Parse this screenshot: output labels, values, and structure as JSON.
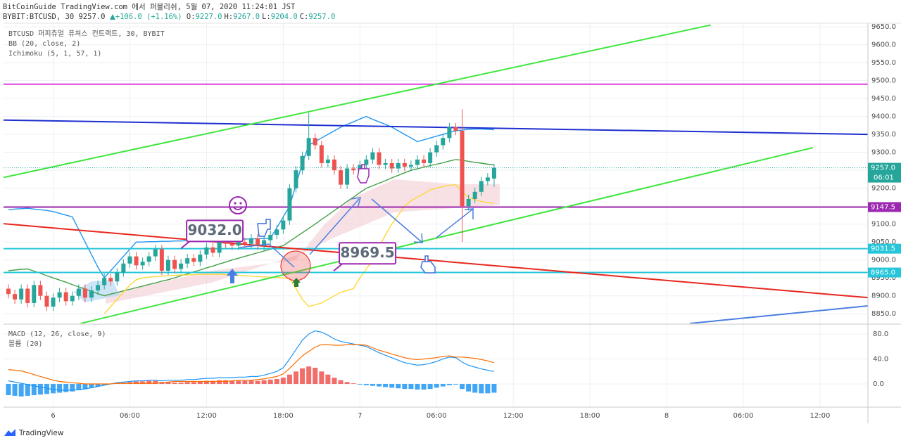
{
  "header": {
    "publisher": "BitCoinGuide TradingView.com 에서 퍼블리쉬, 5월 07, 2020 11:24:01 JST",
    "symbol": "BYBIT:BTCUSD, 30",
    "last": "9257.0",
    "change": "+106.0 (+1.16%)",
    "ohlc": [
      {
        "label": "O:",
        "value": "9227.0"
      },
      {
        "label": "H:",
        "value": "9267.0"
      },
      {
        "label": "L:",
        "value": "9204.0"
      },
      {
        "label": "C:",
        "value": "9257.0"
      }
    ]
  },
  "footer": {
    "brand": "TradingView"
  },
  "chart_data": [
    {
      "type": "candlestick",
      "title": "BTCUSD 퍼피츄얼 퓨쳐스 컨트랙트, 30, BYBIT",
      "open": [
        8920,
        8905,
        8890,
        8920,
        8880,
        8930,
        8900,
        8870,
        8895,
        8910,
        8885,
        8900,
        8920,
        8895,
        8915,
        8930,
        8950,
        8940,
        8965,
        8990,
        9010,
        8985,
        8995,
        9010,
        9030,
        8970,
        9000,
        8975,
        8990,
        9005,
        8995,
        9015,
        9035,
        9020,
        9050,
        9045,
        9040,
        9050,
        9045,
        9060,
        9040,
        9055,
        9070,
        9085,
        9110,
        9200,
        9250,
        9290,
        9340,
        9320,
        9270,
        9280,
        9250,
        9210,
        9255,
        9250,
        9265,
        9280,
        9300,
        9265,
        9270,
        9255,
        9270,
        9260,
        9265,
        9280,
        9270,
        9300,
        9320,
        9340,
        9370,
        9360,
        9150,
        9170,
        9190,
        9220,
        9227
      ],
      "high": [
        8932,
        8917,
        8932,
        8932,
        8942,
        8942,
        8912,
        8907,
        8922,
        8922,
        8912,
        8932,
        8932,
        8927,
        8942,
        8962,
        8962,
        8977,
        9002,
        9022,
        9022,
        9007,
        9022,
        9042,
        9042,
        9012,
        9012,
        9002,
        9017,
        9017,
        9027,
        9047,
        9047,
        9062,
        9062,
        9057,
        9062,
        9062,
        9072,
        9072,
        9067,
        9082,
        9097,
        9122,
        9212,
        9262,
        9302,
        9410,
        9352,
        9332,
        9292,
        9292,
        9262,
        9267,
        9267,
        9277,
        9292,
        9312,
        9312,
        9282,
        9282,
        9282,
        9282,
        9277,
        9292,
        9292,
        9312,
        9332,
        9352,
        9382,
        9382,
        9420,
        9182,
        9202,
        9232,
        9242,
        9267
      ],
      "low": [
        8893,
        8878,
        8878,
        8868,
        8868,
        8888,
        8858,
        8858,
        8883,
        8873,
        8873,
        8888,
        8883,
        8883,
        8903,
        8918,
        8928,
        8928,
        8953,
        8978,
        8973,
        8973,
        8983,
        8998,
        8958,
        8958,
        8963,
        8963,
        8978,
        8983,
        8983,
        9003,
        9008,
        9008,
        9033,
        9028,
        9028,
        9033,
        9033,
        9028,
        9028,
        9043,
        9058,
        9073,
        9098,
        9188,
        9238,
        9278,
        9308,
        9258,
        9258,
        9238,
        9198,
        9198,
        9238,
        9238,
        9253,
        9268,
        9253,
        9253,
        9243,
        9243,
        9248,
        9248,
        9253,
        9258,
        9258,
        9288,
        9308,
        9328,
        9348,
        9050,
        9138,
        9158,
        9178,
        9208,
        9204
      ],
      "close": [
        8905,
        8890,
        8920,
        8880,
        8930,
        8900,
        8870,
        8895,
        8910,
        8885,
        8900,
        8920,
        8895,
        8915,
        8930,
        8950,
        8940,
        8965,
        8990,
        9010,
        8985,
        8995,
        9010,
        9030,
        8970,
        9000,
        8975,
        8990,
        9005,
        8995,
        9015,
        9035,
        9020,
        9050,
        9045,
        9040,
        9050,
        9045,
        9060,
        9040,
        9055,
        9070,
        9085,
        9110,
        9200,
        9250,
        9290,
        9340,
        9320,
        9270,
        9280,
        9250,
        9210,
        9255,
        9250,
        9265,
        9280,
        9300,
        9265,
        9270,
        9255,
        9270,
        9260,
        9265,
        9280,
        9270,
        9300,
        9320,
        9340,
        9370,
        9360,
        9150,
        9170,
        9190,
        9220,
        9230,
        9257
      ],
      "up_color": "#26a69a",
      "down_color": "#ef5350",
      "xlim": [
        -0.77,
        134.5
      ],
      "xticks": [
        {
          "value": 7,
          "label": "6"
        },
        {
          "value": 19,
          "label": "06:00"
        },
        {
          "value": 31,
          "label": "12:00"
        },
        {
          "value": 43,
          "label": "18:00"
        },
        {
          "value": 55,
          "label": "7"
        },
        {
          "value": 67,
          "label": "06:00"
        },
        {
          "value": 79,
          "label": "12:00"
        },
        {
          "value": 91,
          "label": "18:00"
        },
        {
          "value": 103,
          "label": "8"
        },
        {
          "value": 115,
          "label": "06:00"
        },
        {
          "value": 127,
          "label": "12:00"
        }
      ],
      "ylim": [
        8823,
        9660
      ],
      "yticks": [
        {
          "value": 8850,
          "label": "8850.0"
        },
        {
          "value": 8900,
          "label": "8900.0"
        },
        {
          "value": 8950,
          "label": "8950.0"
        },
        {
          "value": 9000,
          "label": "9000.0"
        },
        {
          "value": 9050,
          "label": "9050.0"
        },
        {
          "value": 9100,
          "label": "9100.0"
        },
        {
          "value": 9150,
          "label": "9150.0"
        },
        {
          "value": 9200,
          "label": "9200.0"
        },
        {
          "value": 9250,
          "label": "9250.0"
        },
        {
          "value": 9300,
          "label": "9300.0"
        },
        {
          "value": 9350,
          "label": "9350.0"
        },
        {
          "value": 9400,
          "label": "9400.0"
        },
        {
          "value": 9450,
          "label": "9450.0"
        },
        {
          "value": 9500,
          "label": "9500.0"
        },
        {
          "value": 9550,
          "label": "9550.0"
        },
        {
          "value": 9600,
          "label": "9600.0"
        },
        {
          "value": 9650,
          "label": "9650.0"
        }
      ],
      "grid": true,
      "indicators": [
        {
          "name": "BB (20, close, 2)",
          "lines": [
            {
              "color": "#43a047",
              "values": [
                8970,
                8972,
                8974,
                8975,
                8969,
                8963,
                8956,
                8950,
                8944,
                8938,
                8931,
                8925,
                8919,
                8913,
                8906,
                8900,
                8905,
                8909,
                8914,
                8918,
                8923,
                8927,
                8932,
                8936,
                8941,
                8945,
                8950,
                8956,
                8961,
                8967,
                8972,
                8978,
                8983,
                8989,
                8994,
                9000,
                9005,
                9010,
                9015,
                9020,
                9025,
                9030,
                9035,
                9040,
                9052,
                9064,
                9076,
                9088,
                9100,
                9113,
                9125,
                9138,
                9150,
                9163,
                9175,
                9188,
                9200,
                9207,
                9214,
                9221,
                9229,
                9236,
                9243,
                9250,
                9254,
                9259,
                9263,
                9267,
                9271,
                9276,
                9280,
                9278,
                9275,
                9272,
                9270,
                9267,
                9265
              ]
            },
            {
              "color": "#2196f3",
              "values": [
                9140,
                9142,
                9143,
                9144,
                9142,
                9140,
                9138,
                9135,
                9130,
                9125,
                9120,
                9085,
                9050,
                9015,
                8980,
                8950,
                8970,
                8990,
                9010,
                9030,
                9050,
                9050,
                9051,
                9051,
                9052,
                9052,
                9053,
                9053,
                9054,
                9054,
                9055,
                9055,
                9056,
                9056,
                9057,
                9057,
                9058,
                9058,
                9059,
                9059,
                9060,
                9060,
                9090,
                9120,
                9150,
                9210,
                9270,
                9320,
                9330,
                9340,
                9350,
                9360,
                9370,
                9378,
                9385,
                9393,
                9400,
                9392,
                9385,
                9378,
                9370,
                9360,
                9350,
                9340,
                9330,
                9335,
                9340,
                9345,
                9350,
                9355,
                9360,
                9362,
                9364,
                9365,
                9365,
                9364,
                9363
              ]
            }
          ]
        },
        {
          "name": "Ichimoku (5, 1, 57, 1)",
          "lines": [
            {
              "color": "#fdd835",
              "values": [
                null,
                null,
                null,
                null,
                null,
                null,
                null,
                null,
                null,
                null,
                null,
                null,
                null,
                null,
                null,
                8850,
                8870,
                8890,
                8910,
                8930,
                8945,
                8950,
                8952,
                8954,
                8955,
                8956,
                8957,
                8958,
                8958,
                8959,
                8960,
                8960,
                8960,
                8960,
                8959,
                8958,
                8957,
                8956,
                8955,
                8954,
                8953,
                8952,
                8951,
                8950,
                8948,
                8920,
                8890,
                8870,
                8875,
                8880,
                8890,
                8900,
                8910,
                8915,
                8920,
                8950,
                8975,
                9000,
                9035,
                9070,
                9100,
                9125,
                9150,
                9165,
                9175,
                9185,
                9195,
                9200,
                9205,
                9208,
                9210,
                9190,
                9175,
                9168,
                9163,
                9160,
                9158
              ]
            }
          ]
        }
      ],
      "levels": [
        {
          "value": 9490,
          "color": "#e040e0"
        },
        {
          "value": 9147.5,
          "label": "9147.5",
          "color": "#9c27b0"
        },
        {
          "value": 9031.5,
          "label": "9031.5",
          "color": "#26c6da"
        },
        {
          "value": 8965,
          "label": "8965.0",
          "color": "#26c6da"
        }
      ],
      "last_price": {
        "value": 9257,
        "label": "9257.0",
        "countdown": "06:01",
        "color": "#26a69a"
      },
      "trend_lines": [
        {
          "color": "#1e2fd0",
          "x": [
            -0.77,
            134.5
          ],
          "y": [
            9390,
            9350
          ]
        },
        {
          "color": "#3ee63e",
          "x": [
            -0.77,
            109.9
          ],
          "y": [
            9230,
            9655
          ]
        },
        {
          "color": "#3ee63e",
          "x": [
            11.3,
            125.9
          ],
          "y": [
            8823,
            9313
          ]
        },
        {
          "color": "#e8261e",
          "x": [
            -0.77,
            134.5
          ],
          "y": [
            9101,
            8895
          ]
        },
        {
          "color": "#4a7fe0",
          "x": [
            106.6,
            134.5
          ],
          "y": [
            8823,
            8872
          ]
        }
      ],
      "annotations": [
        {
          "x": 27,
          "value": 9032,
          "label": "9032.0"
        },
        {
          "x": 50.9,
          "value": 8969.5,
          "label": "8969.5"
        }
      ]
    },
    {
      "type": "macd",
      "title": "MACD (12, 26, close, 9)",
      "subtitle": "볼륨 (20)",
      "xlim": [
        -0.77,
        134.5
      ],
      "ylim": [
        -36,
        94.6
      ],
      "yticks": [
        {
          "value": 80,
          "label": "80.0"
        },
        {
          "value": 40,
          "label": "40.0"
        },
        {
          "value": 0,
          "label": "0.0"
        }
      ],
      "histogram": {
        "pos_color": "#ef5350",
        "neg_color": "#2196f3",
        "values": [
          -18,
          -19,
          -20,
          -19,
          -18,
          -17,
          -16,
          -15,
          -14,
          -13,
          -12,
          -10,
          -8,
          -6,
          -4,
          -2,
          0,
          1,
          2,
          3,
          4,
          4,
          5,
          5,
          3,
          3,
          2,
          2,
          3,
          3,
          4,
          5,
          5,
          6,
          6,
          5,
          5,
          5,
          6,
          5,
          6,
          7,
          8,
          10,
          15,
          20,
          25,
          28,
          26,
          20,
          15,
          10,
          6,
          3,
          1,
          -1,
          -2,
          -3,
          -4,
          -5,
          -6,
          -7,
          -8,
          -8,
          -9,
          -9,
          -8,
          -6,
          -4,
          -2,
          -1,
          -8,
          -12,
          -14,
          -15,
          -15,
          -14
        ]
      },
      "macd_line": {
        "color": "#2196f3",
        "values": [
          5,
          3,
          1,
          -1,
          -3,
          -5,
          -7,
          -9,
          -10,
          -10,
          -10,
          -9,
          -8,
          -6,
          -4,
          -2,
          0,
          2,
          3,
          4,
          5,
          5,
          6,
          6,
          5,
          6,
          6,
          6,
          7,
          7,
          8,
          9,
          9,
          10,
          10,
          10,
          11,
          11,
          12,
          12,
          14,
          17,
          20,
          26,
          40,
          55,
          70,
          80,
          85,
          83,
          78,
          72,
          68,
          66,
          64,
          62,
          60,
          55,
          50,
          46,
          42,
          38,
          34,
          32,
          30,
          31,
          33,
          36,
          40,
          43,
          42,
          35,
          30,
          27,
          24,
          22,
          20
        ]
      },
      "signal_line": {
        "color": "#ff6d00",
        "values": [
          23,
          22,
          21,
          18,
          15,
          12,
          9,
          6,
          4,
          3,
          2,
          1,
          0,
          0,
          0,
          0,
          0,
          1,
          1,
          1,
          1,
          1,
          1,
          1,
          2,
          3,
          4,
          4,
          4,
          4,
          4,
          4,
          4,
          4,
          4,
          5,
          6,
          6,
          6,
          7,
          8,
          10,
          12,
          16,
          25,
          35,
          45,
          52,
          59,
          63,
          63,
          62,
          62,
          63,
          63,
          63,
          62,
          58,
          54,
          51,
          48,
          45,
          42,
          40,
          39,
          40,
          41,
          42,
          44,
          45,
          43,
          43,
          42,
          41,
          39,
          37,
          34
        ]
      }
    }
  ]
}
